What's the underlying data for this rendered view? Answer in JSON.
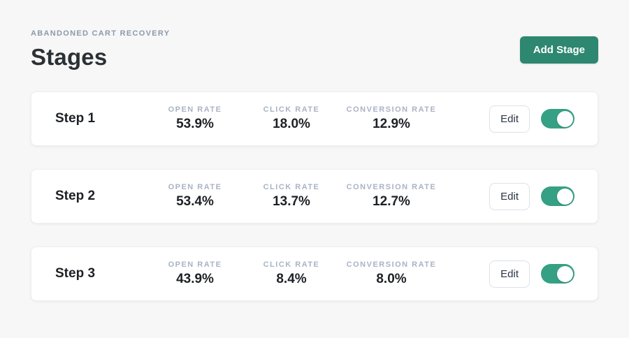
{
  "header": {
    "eyebrow": "ABANDONED CART RECOVERY",
    "title": "Stages",
    "add_stage_label": "Add Stage"
  },
  "column_labels": {
    "open_rate": "OPEN RATE",
    "click_rate": "CLICK RATE",
    "conversion_rate": "CONVERSION RATE"
  },
  "stages": [
    {
      "name": "Step 1",
      "open_rate": "53.9%",
      "click_rate": "18.0%",
      "conversion_rate": "12.9%",
      "edit_label": "Edit",
      "enabled": true
    },
    {
      "name": "Step 2",
      "open_rate": "53.4%",
      "click_rate": "13.7%",
      "conversion_rate": "12.7%",
      "edit_label": "Edit",
      "enabled": true
    },
    {
      "name": "Step 3",
      "open_rate": "43.9%",
      "click_rate": "8.4%",
      "conversion_rate": "8.0%",
      "edit_label": "Edit",
      "enabled": true
    }
  ],
  "colors": {
    "page_background": "#f6f7f6",
    "card_background": "#ffffff",
    "accent_green": "#2e8770",
    "toggle_green": "#36a084",
    "label_gray": "#a9b3c4",
    "text_dark": "#1d2025"
  }
}
